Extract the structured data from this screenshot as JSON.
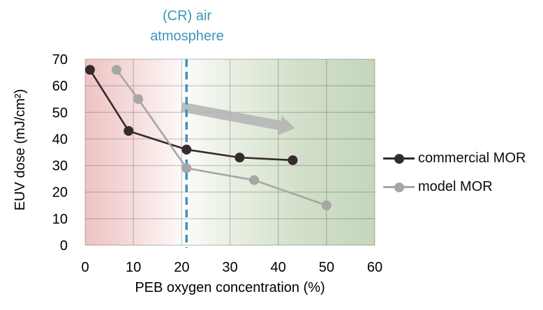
{
  "page": {
    "background": "#FFFFFF"
  },
  "annotation": {
    "text": "(CR) air atmosphere",
    "color": "#3E93BC"
  },
  "chart_data": {
    "type": "line",
    "title": "",
    "xlabel": "PEB oxygen concentration (%)",
    "ylabel": "EUV dose (mJ/cm²)",
    "xlim": [
      0,
      60
    ],
    "ylim": [
      0,
      70
    ],
    "xticks": [
      0,
      10,
      20,
      30,
      40,
      50,
      60
    ],
    "yticks": [
      0,
      10,
      20,
      30,
      40,
      50,
      60,
      70
    ],
    "grid": true,
    "legend_position": "right",
    "series": [
      {
        "name": "commercial MOR",
        "color": "#342B2C",
        "x": [
          1,
          9,
          21,
          32,
          43
        ],
        "y": [
          66,
          43,
          36,
          33,
          32
        ]
      },
      {
        "name": "model MOR",
        "color": "#A6A6A6",
        "x": [
          6.5,
          11,
          21,
          35,
          50
        ],
        "y": [
          66,
          55,
          29,
          24.5,
          15
        ]
      }
    ],
    "reference_line": {
      "x": 21,
      "label": "(CR) air atmosphere",
      "color": "#3E93BC",
      "style": "dashed"
    },
    "arrow": {
      "x1": 20,
      "y1": 52,
      "x2": 43.5,
      "y2": 44,
      "color": "#B3B3B3"
    },
    "background_gradient": [
      {
        "offset": 0.0,
        "color": "#EEC3C3"
      },
      {
        "offset": 0.18,
        "color": "#F6DEDD"
      },
      {
        "offset": 0.34,
        "color": "#FCFBFA"
      },
      {
        "offset": 0.5,
        "color": "#E9F0E3"
      },
      {
        "offset": 0.75,
        "color": "#D2DFC9"
      },
      {
        "offset": 1.0,
        "color": "#C5D6BC"
      }
    ]
  }
}
